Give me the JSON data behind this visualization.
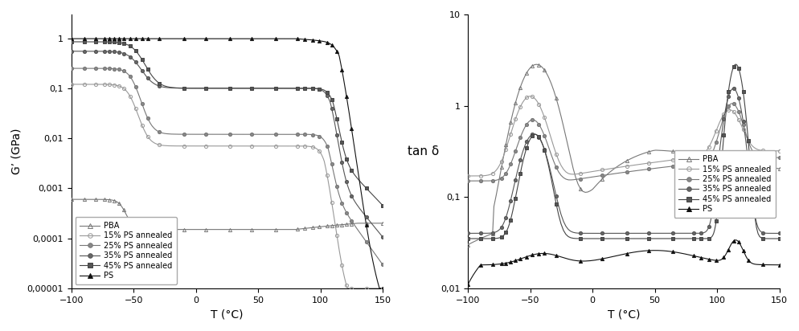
{
  "ylabel_left": "G’ (GPa)",
  "ylabel_right": "tan δ",
  "xlabel": "T (°C)",
  "xlim": [
    -100,
    150
  ],
  "x_ticks": [
    -100,
    -50,
    0,
    50,
    100,
    150
  ],
  "left_ylim": [
    1e-05,
    3
  ],
  "left_yticks_labels": [
    "0,00001",
    "0,0001",
    "0,001",
    "0,01",
    "0,1",
    "1"
  ],
  "left_yticks_vals": [
    1e-05,
    0.0001,
    0.001,
    0.01,
    0.1,
    1
  ],
  "right_ylim": [
    0.01,
    10
  ],
  "right_yticks_labels": [
    "0,01",
    "0,1",
    "1",
    "10"
  ],
  "right_yticks_vals": [
    0.01,
    0.1,
    1,
    10
  ],
  "series": [
    "PBA",
    "15% PS annealed",
    "25% PS annealed",
    "35% PS annealed",
    "45% PS annealed",
    "PS"
  ],
  "markers": [
    "^",
    "o",
    "o",
    "o",
    "s",
    "^"
  ],
  "line_colors": [
    "#777777",
    "#999999",
    "#777777",
    "#555555",
    "#444444",
    "#111111"
  ],
  "marker_edge_colors": [
    "#777777",
    "#999999",
    "#777777",
    "#555555",
    "#444444",
    "#111111"
  ],
  "marker_face_colors": [
    "none",
    "none",
    "#888888",
    "#666666",
    "#555555",
    "#111111"
  ],
  "markersize": 3,
  "linewidth": 0.8
}
